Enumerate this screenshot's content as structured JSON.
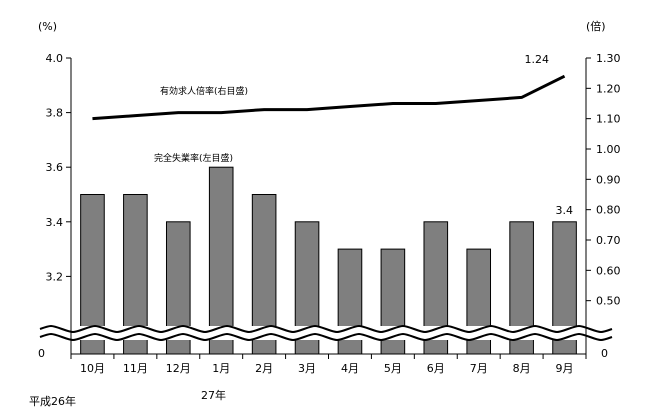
{
  "chart_data": {
    "type": "bar+line",
    "categories": [
      "10月",
      "11月",
      "12月",
      "1月",
      "2月",
      "3月",
      "4月",
      "5月",
      "6月",
      "7月",
      "8月",
      "9月"
    ],
    "category_groups": [
      {
        "label": "平成26年",
        "start_index": 0
      },
      {
        "label": "27年",
        "start_index": 3
      }
    ],
    "left_axis": {
      "unit": "(%)",
      "ticks": [
        "4.0",
        "3.8",
        "3.6",
        "3.4",
        "3.2"
      ],
      "tick_values": [
        4.0,
        3.8,
        3.6,
        3.4,
        3.2
      ],
      "zero_label": "0",
      "range": [
        3.0,
        4.0
      ],
      "broken": true
    },
    "right_axis": {
      "unit": "(倍)",
      "ticks": [
        "1.30",
        "1.20",
        "1.10",
        "1.00",
        "0.90",
        "0.80",
        "0.70",
        "0.60",
        "0.50"
      ],
      "tick_values": [
        1.3,
        1.2,
        1.1,
        1.0,
        0.9,
        0.8,
        0.7,
        0.6,
        0.5
      ],
      "zero_label": "0",
      "range": [
        0.4,
        1.3
      ],
      "broken": true
    },
    "series": [
      {
        "name": "完全失業率(左目盛)",
        "type": "bar",
        "axis": "left",
        "color": "#7f7f7f",
        "values": [
          3.5,
          3.5,
          3.4,
          3.6,
          3.5,
          3.4,
          3.3,
          3.3,
          3.4,
          3.3,
          3.4,
          3.4
        ],
        "last_label": "3.4"
      },
      {
        "name": "有効求人倍率(右目盛)",
        "type": "line",
        "axis": "right",
        "color": "#000000",
        "values": [
          1.1,
          1.11,
          1.12,
          1.12,
          1.13,
          1.13,
          1.14,
          1.15,
          1.15,
          1.16,
          1.17,
          1.24
        ],
        "last_label": "1.24"
      }
    ],
    "grid": false
  }
}
